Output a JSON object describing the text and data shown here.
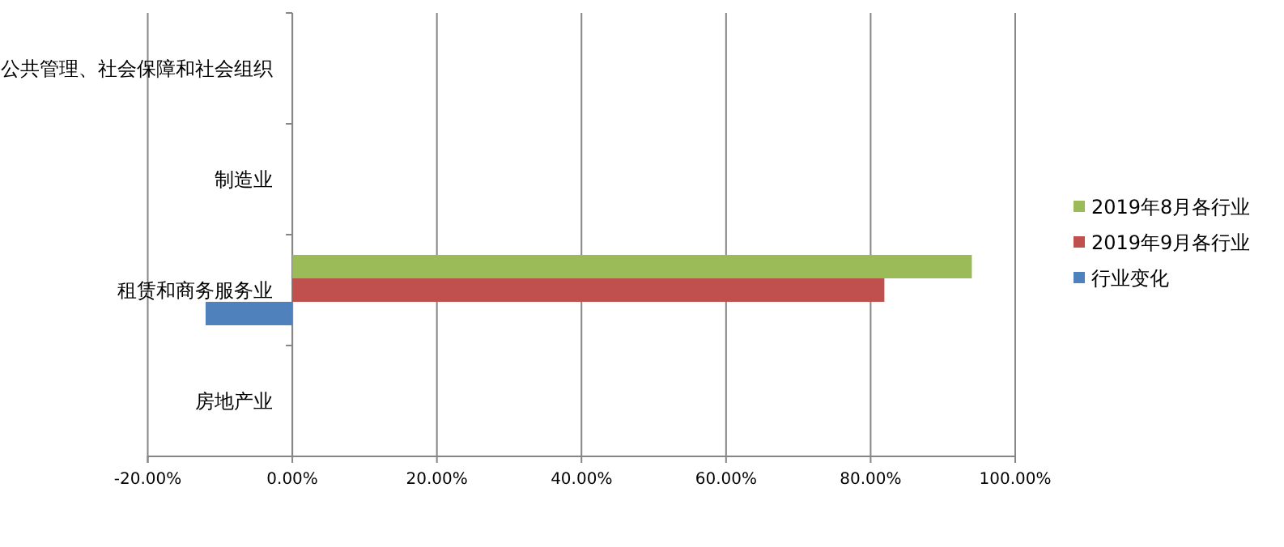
{
  "chart_data": {
    "type": "bar",
    "orientation": "horizontal",
    "categories": [
      "公共管理、社会保障和社会组织",
      "制造业",
      "租赁和商务服务业",
      "房地产业"
    ],
    "series": [
      {
        "name": "2019年8月各行业",
        "color": "#9bbb59",
        "values": [
          0,
          0,
          94.0,
          0
        ]
      },
      {
        "name": "2019年9月各行业",
        "color": "#c0504d",
        "values": [
          0,
          0,
          81.9,
          0
        ]
      },
      {
        "name": "行业变化",
        "color": "#4f81bd",
        "values": [
          0,
          0,
          -12.0,
          0
        ]
      }
    ],
    "xlim": [
      -20,
      100
    ],
    "xticks": [
      {
        "value": -20,
        "label": "-20.00%"
      },
      {
        "value": 0,
        "label": "0.00%"
      },
      {
        "value": 20,
        "label": "20.00%"
      },
      {
        "value": 40,
        "label": "40.00%"
      },
      {
        "value": 60,
        "label": "60.00%"
      },
      {
        "value": 80,
        "label": "80.00%"
      },
      {
        "value": 100,
        "label": "100.00%"
      }
    ],
    "grid": "x",
    "legend": "right"
  }
}
